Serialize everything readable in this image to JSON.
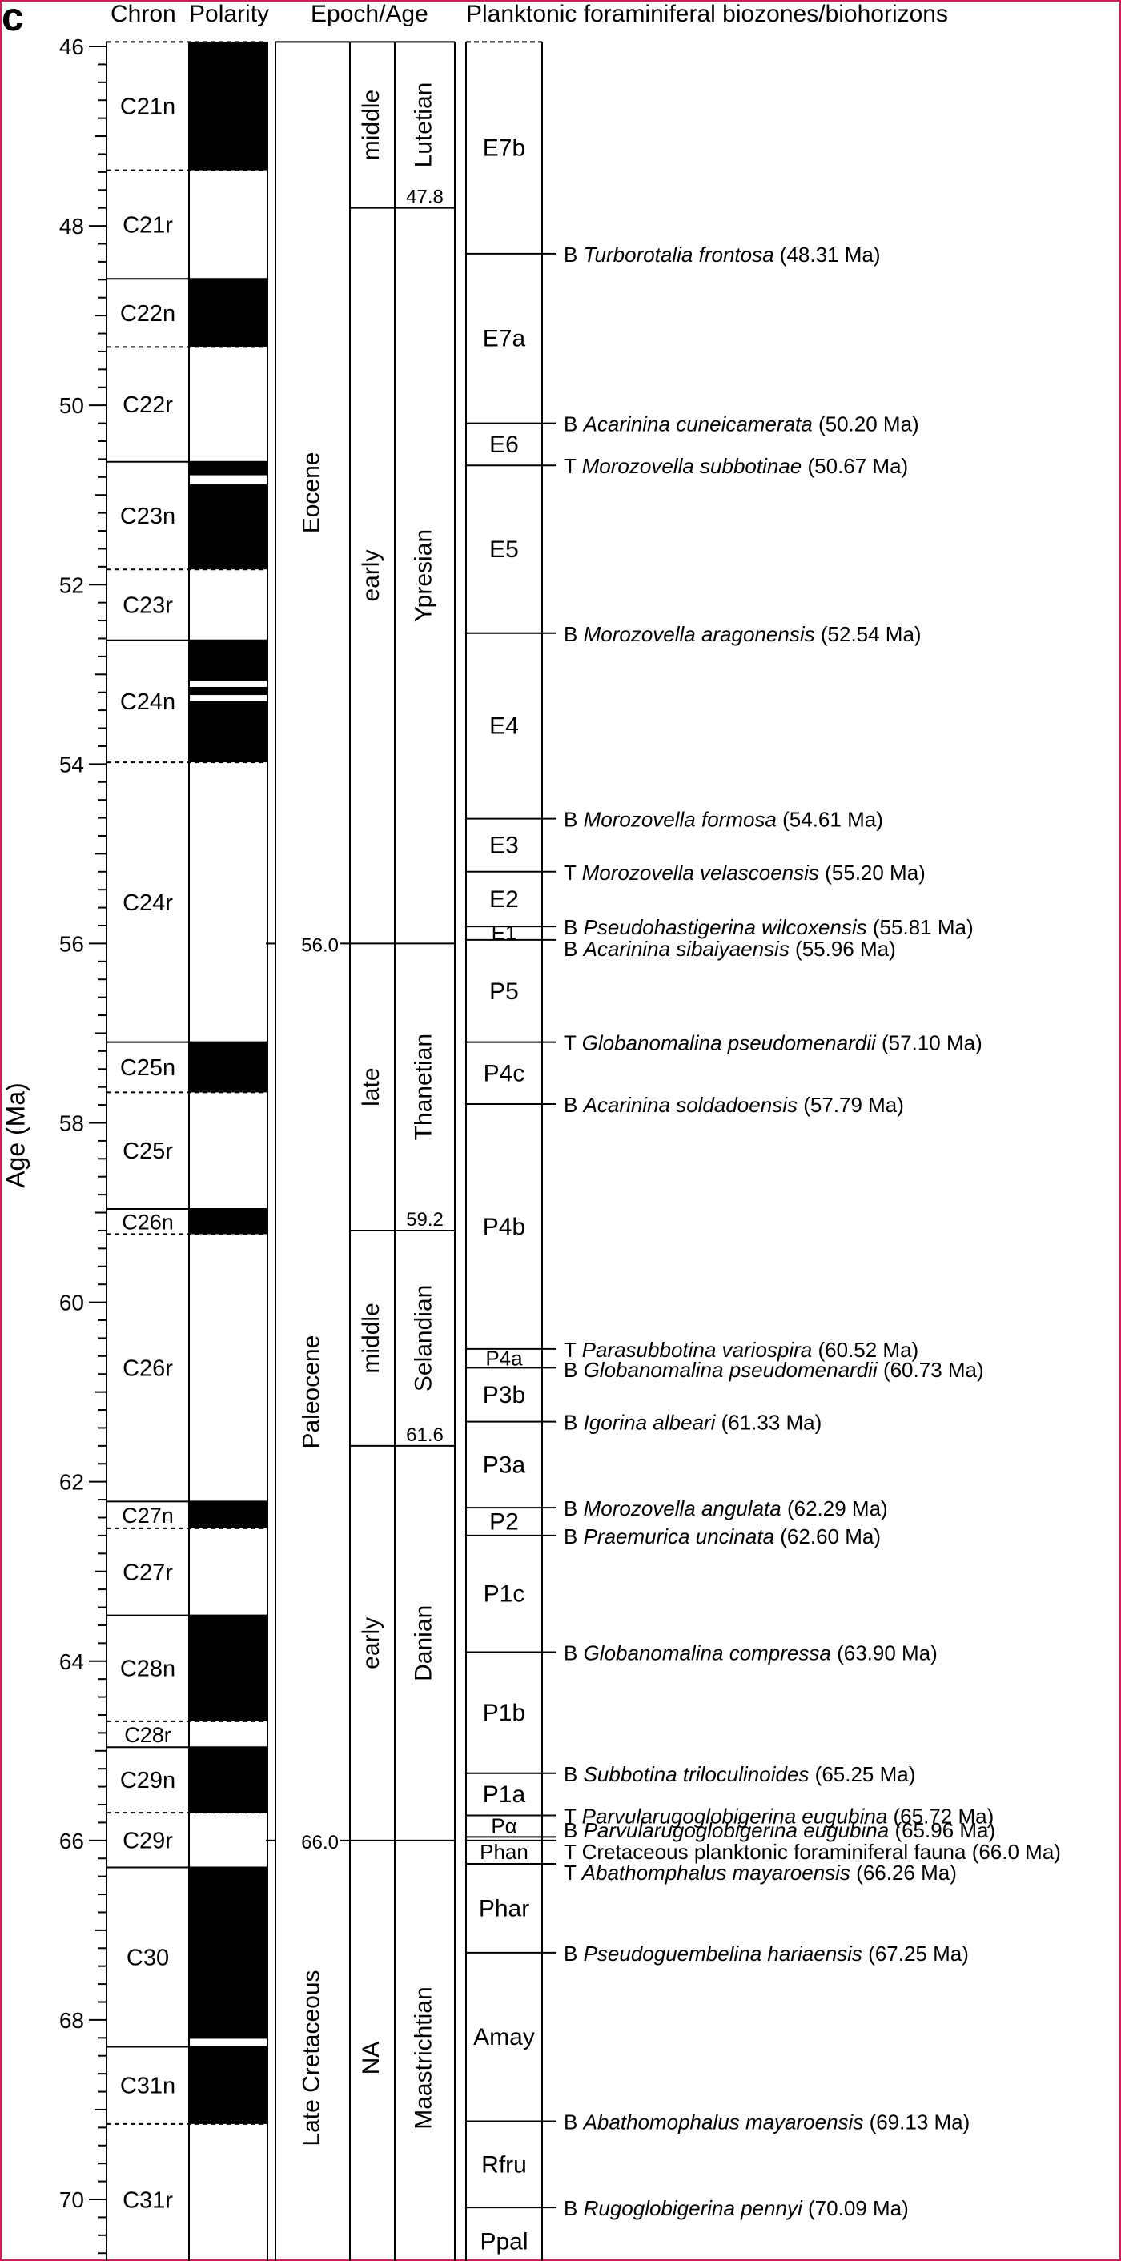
{
  "panel_label": "c",
  "headers": {
    "chron": "Chron",
    "polarity": "Polarity",
    "epoch_age": "Epoch/Age",
    "biozones": "Planktonic foraminiferal biozones/biohorizons"
  },
  "axis": {
    "label": "Age (Ma)",
    "min": 45.95,
    "max": 70.85,
    "major_ticks": [
      "46",
      "48",
      "50",
      "52",
      "54",
      "56",
      "58",
      "60",
      "62",
      "64",
      "66",
      "68",
      "70"
    ],
    "minor_step": 0.2,
    "inverted": true
  },
  "chrons": [
    {
      "name": "C21n",
      "top": 45.95,
      "base": 47.38,
      "top_dashed": true
    },
    {
      "name": "C21r",
      "top": 47.38,
      "base": 48.59,
      "top_dashed": true
    },
    {
      "name": "C22n",
      "top": 48.59,
      "base": 49.35,
      "top_dashed": false
    },
    {
      "name": "C22r",
      "top": 49.35,
      "base": 50.63,
      "top_dashed": true
    },
    {
      "name": "C23n",
      "top": 50.63,
      "base": 51.83,
      "top_dashed": false
    },
    {
      "name": "C23r",
      "top": 51.83,
      "base": 52.62,
      "top_dashed": true
    },
    {
      "name": "C24n",
      "top": 52.62,
      "base": 53.98,
      "top_dashed": false
    },
    {
      "name": "C24r",
      "top": 53.98,
      "base": 57.1,
      "top_dashed": true
    },
    {
      "name": "C25n",
      "top": 57.1,
      "base": 57.66,
      "top_dashed": false
    },
    {
      "name": "C25r",
      "top": 57.66,
      "base": 58.96,
      "top_dashed": true
    },
    {
      "name": "C26n",
      "top": 58.96,
      "base": 59.24,
      "top_dashed": false
    },
    {
      "name": "C26r",
      "top": 59.24,
      "base": 62.22,
      "top_dashed": true
    },
    {
      "name": "C27n",
      "top": 62.22,
      "base": 62.52,
      "top_dashed": false
    },
    {
      "name": "C27r",
      "top": 62.52,
      "base": 63.49,
      "top_dashed": true
    },
    {
      "name": "C28n",
      "top": 63.49,
      "base": 64.67,
      "top_dashed": false
    },
    {
      "name": "C28r",
      "top": 64.67,
      "base": 64.96,
      "top_dashed": true
    },
    {
      "name": "C29n",
      "top": 64.96,
      "base": 65.69,
      "top_dashed": false
    },
    {
      "name": "C29r",
      "top": 65.69,
      "base": 66.3,
      "top_dashed": true
    },
    {
      "name": "C30",
      "top": 66.3,
      "base": 68.3,
      "top_dashed": false
    },
    {
      "name": "C31n",
      "top": 68.3,
      "base": 69.16,
      "top_dashed": false
    },
    {
      "name": "C31r",
      "top": 69.16,
      "base": 70.85,
      "top_dashed": true
    }
  ],
  "normal_polarity": [
    [
      45.95,
      47.38
    ],
    [
      48.59,
      49.35
    ],
    [
      50.63,
      50.78
    ],
    [
      50.88,
      51.83
    ],
    [
      52.62,
      53.07
    ],
    [
      53.14,
      53.23
    ],
    [
      53.3,
      53.98
    ],
    [
      57.1,
      57.66
    ],
    [
      58.96,
      59.24
    ],
    [
      62.22,
      62.52
    ],
    [
      63.49,
      64.67
    ],
    [
      64.96,
      65.69
    ],
    [
      66.3,
      68.21
    ],
    [
      68.3,
      69.16
    ]
  ],
  "chron_boundary_dashed": [
    47.38,
    49.35,
    51.83,
    53.98,
    57.66,
    59.24,
    62.52,
    64.67,
    65.69,
    69.16
  ],
  "chron_boundary_solid": [
    48.59,
    50.63,
    52.62,
    57.1,
    58.96,
    62.22,
    63.49,
    64.96,
    66.3,
    68.3
  ],
  "epochs": [
    {
      "name": "Eocene",
      "top": 45.95,
      "base": 56.0
    },
    {
      "name": "Paleocene",
      "top": 56.0,
      "base": 66.0
    },
    {
      "name": "Late Cretaceous",
      "top": 66.0,
      "base": 70.85
    }
  ],
  "epoch_boundaries": [
    {
      "age": 56.0,
      "label": "56.0"
    },
    {
      "age": 66.0,
      "label": "66.0"
    }
  ],
  "subepochs": [
    {
      "name": "middle",
      "top": 45.95,
      "base": 47.8
    },
    {
      "name": "early",
      "top": 47.8,
      "base": 56.0
    },
    {
      "name": "late",
      "top": 56.0,
      "base": 59.2
    },
    {
      "name": "middle",
      "top": 59.2,
      "base": 61.6
    },
    {
      "name": "early",
      "top": 61.6,
      "base": 66.0
    },
    {
      "name": "NA",
      "top": 66.0,
      "base": 70.85
    }
  ],
  "stages": [
    {
      "name": "Lutetian",
      "top": 45.95,
      "base": 47.8
    },
    {
      "name": "Ypresian",
      "top": 47.8,
      "base": 56.0
    },
    {
      "name": "Thanetian",
      "top": 56.0,
      "base": 59.2
    },
    {
      "name": "Selandian",
      "top": 59.2,
      "base": 61.6
    },
    {
      "name": "Danian",
      "top": 61.6,
      "base": 66.0
    },
    {
      "name": "Maastrichtian",
      "top": 66.0,
      "base": 70.85
    }
  ],
  "stage_boundary_labels": [
    {
      "age": 47.8,
      "label": "47.8"
    },
    {
      "age": 59.2,
      "label": "59.2"
    },
    {
      "age": 61.6,
      "label": "61.6"
    }
  ],
  "biozones": [
    {
      "name": "E7b",
      "top": 45.95,
      "base": 48.31
    },
    {
      "name": "E7a",
      "top": 48.31,
      "base": 50.2
    },
    {
      "name": "E6",
      "top": 50.2,
      "base": 50.67
    },
    {
      "name": "E5",
      "top": 50.67,
      "base": 52.54
    },
    {
      "name": "E4",
      "top": 52.54,
      "base": 54.61
    },
    {
      "name": "E3",
      "top": 54.61,
      "base": 55.2
    },
    {
      "name": "E2",
      "top": 55.2,
      "base": 55.81
    },
    {
      "name": "E1",
      "top": 55.81,
      "base": 55.96
    },
    {
      "name": "P5",
      "top": 55.96,
      "base": 57.1
    },
    {
      "name": "P4c",
      "top": 57.1,
      "base": 57.79
    },
    {
      "name": "P4b",
      "top": 57.79,
      "base": 60.52
    },
    {
      "name": "P4a",
      "top": 60.52,
      "base": 60.73
    },
    {
      "name": "P3b",
      "top": 60.73,
      "base": 61.33
    },
    {
      "name": "P3a",
      "top": 61.33,
      "base": 62.29
    },
    {
      "name": "P2",
      "top": 62.29,
      "base": 62.6
    },
    {
      "name": "P1c",
      "top": 62.6,
      "base": 63.9
    },
    {
      "name": "P1b",
      "top": 63.9,
      "base": 65.25
    },
    {
      "name": "P1a",
      "top": 65.25,
      "base": 65.72
    },
    {
      "name": "Pα",
      "top": 65.72,
      "base": 65.96
    },
    {
      "name": "Phan",
      "top": 66.0,
      "base": 66.26
    },
    {
      "name": "Phar",
      "top": 66.26,
      "base": 67.25
    },
    {
      "name": "Amay",
      "top": 67.25,
      "base": 69.13
    },
    {
      "name": "Rfru",
      "top": 69.13,
      "base": 70.09
    },
    {
      "name": "Ppal",
      "top": 70.09,
      "base": 70.85
    }
  ],
  "biozone_boundaries": [
    48.31,
    50.2,
    50.67,
    52.54,
    54.61,
    55.2,
    55.81,
    55.96,
    57.1,
    57.79,
    60.52,
    60.73,
    61.33,
    62.29,
    62.6,
    63.9,
    65.25,
    65.72,
    65.96,
    66.0,
    66.26,
    67.25,
    69.13,
    70.09
  ],
  "biohorizons": [
    {
      "prefix": "B",
      "taxon": "Turborotalia frontosa",
      "age_text": "(48.31 Ma)",
      "age": 48.31
    },
    {
      "prefix": "B",
      "taxon": "Acarinina cuneicamerata",
      "age_text": "(50.20 Ma)",
      "age": 50.2
    },
    {
      "prefix": "T",
      "taxon": "Morozovella subbotinae",
      "age_text": "(50.67 Ma)",
      "age": 50.67
    },
    {
      "prefix": "B",
      "taxon": "Morozovella aragonensis",
      "age_text": "(52.54 Ma)",
      "age": 52.54
    },
    {
      "prefix": "B",
      "taxon": "Morozovella formosa",
      "age_text": "(54.61 Ma)",
      "age": 54.61
    },
    {
      "prefix": "T",
      "taxon": "Morozovella velascoensis",
      "age_text": "(55.20 Ma)",
      "age": 55.2
    },
    {
      "prefix": "B",
      "taxon": "Pseudohastigerina wilcoxensis",
      "age_text": "(55.81 Ma)",
      "age": 55.81
    },
    {
      "prefix": "B",
      "taxon": "Acarinina sibaiyaensis",
      "age_text": "(55.96 Ma)",
      "age": 55.96
    },
    {
      "prefix": "T",
      "taxon": "Globanomalina pseudomenardii",
      "age_text": "(57.10 Ma)",
      "age": 57.1
    },
    {
      "prefix": "B",
      "taxon": "Acarinina soldadoensis",
      "age_text": "(57.79 Ma)",
      "age": 57.79
    },
    {
      "prefix": "T",
      "taxon": "Parasubbotina variospira",
      "age_text": "(60.52 Ma)",
      "age": 60.52
    },
    {
      "prefix": "B",
      "taxon": "Globanomalina pseudomenardii",
      "age_text": "(60.73 Ma)",
      "age": 60.73
    },
    {
      "prefix": "B",
      "taxon": "Igorina albeari",
      "age_text": "(61.33 Ma)",
      "age": 61.33
    },
    {
      "prefix": "B",
      "taxon": "Morozovella angulata",
      "age_text": "(62.29 Ma)",
      "age": 62.29
    },
    {
      "prefix": "B",
      "taxon": "Praemurica uncinata",
      "age_text": "(62.60 Ma)",
      "age": 62.6
    },
    {
      "prefix": "B",
      "taxon": "Globanomalina compressa",
      "age_text": "(63.90 Ma)",
      "age": 63.9
    },
    {
      "prefix": "B",
      "taxon": "Subbotina triloculinoides",
      "age_text": "(65.25 Ma)",
      "age": 65.25
    },
    {
      "prefix": "T",
      "taxon": "Parvularugoglobigerina eugubina",
      "age_text": "(65.72 Ma)",
      "age": 65.72
    },
    {
      "prefix": "B",
      "taxon": "Parvularugoglobigerina eugubina",
      "age_text": "(65.96 Ma)",
      "age": 65.96
    },
    {
      "prefix": "T",
      "taxon": "",
      "plain": "Cretaceous planktonic foraminiferal fauna",
      "age_text": "(66.0 Ma)",
      "age": 66.0
    },
    {
      "prefix": "T",
      "taxon": "Abathomphalus mayaroensis",
      "age_text": "(66.26 Ma)",
      "age": 66.26
    },
    {
      "prefix": "B",
      "taxon": "Pseudoguembelina hariaensis",
      "age_text": "(67.25 Ma)",
      "age": 67.25
    },
    {
      "prefix": "B",
      "taxon": "Abathomophalus mayaroensis",
      "age_text": "(69.13 Ma)",
      "age": 69.13
    },
    {
      "prefix": "B",
      "taxon": "Rugoglobigerina pennyi",
      "age_text": "(70.09 Ma)",
      "age": 70.09
    }
  ]
}
